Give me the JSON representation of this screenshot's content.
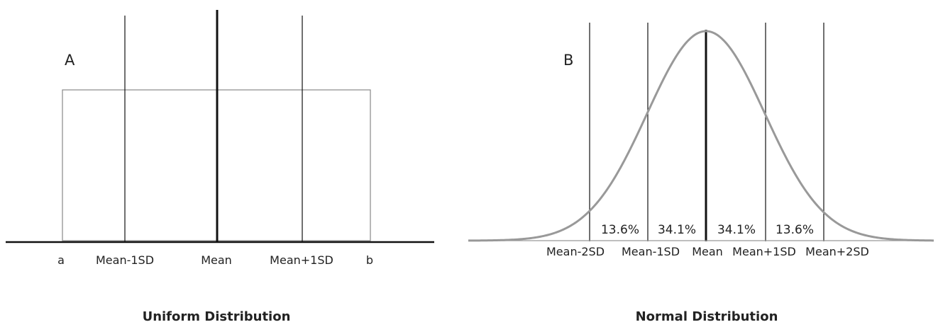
{
  "panels": {
    "uniform": {
      "letter": "A",
      "caption": "Uniform Distribution",
      "x_labels": {
        "a": "a",
        "mean_minus_1sd": "Mean-1SD",
        "mean": "Mean",
        "mean_plus_1sd": "Mean+1SD",
        "b": "b"
      }
    },
    "normal": {
      "letter": "B",
      "caption": "Normal Distribution",
      "x_labels": {
        "mean_minus_2sd": "Mean-2SD",
        "mean_minus_1sd": "Mean-1SD",
        "mean": "Mean",
        "mean_plus_1sd": "Mean+1SD",
        "mean_plus_2sd": "Mean+2SD"
      },
      "region_percentages": {
        "minus2_to_minus1": "13.6%",
        "minus1_to_mean": "34.1%",
        "mean_to_plus1": "34.1%",
        "plus1_to_plus2": "13.6%"
      }
    }
  },
  "colors": {
    "axis": "#111111",
    "lines": "#111111",
    "outline": "#888888",
    "curve": "#999999",
    "text": "#222222"
  }
}
